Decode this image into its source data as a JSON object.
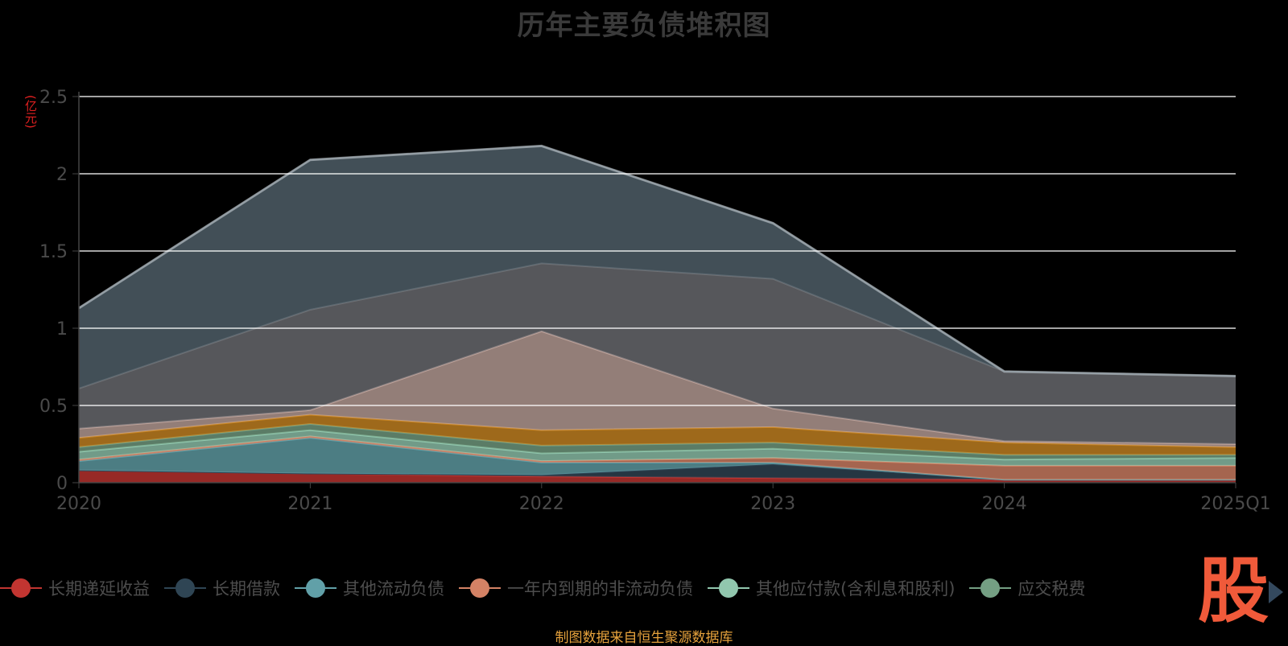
{
  "chart_data": {
    "type": "area",
    "stacked": true,
    "title": "历年主要负债堆积图",
    "ylabel": "(亿元)",
    "ylim": [
      0,
      2.5
    ],
    "yticks": [
      "0",
      "0.5",
      "1",
      "1.5",
      "2",
      "2.5"
    ],
    "categories": [
      "2020",
      "2021",
      "2022",
      "2023",
      "2024",
      "2025Q1"
    ],
    "grid": true,
    "legend_position": "bottom",
    "series": [
      {
        "name": "长期递延收益",
        "color": "#c23531",
        "values": [
          0.08,
          0.06,
          0.04,
          0.03,
          0.02,
          0.02
        ]
      },
      {
        "name": "长期借款",
        "color": "#2f4554",
        "values": [
          0.0,
          0.0,
          0.01,
          0.09,
          0.0,
          0.0
        ]
      },
      {
        "name": "其他流动负债",
        "color": "#61a0a8",
        "values": [
          0.06,
          0.23,
          0.08,
          0.01,
          0.0,
          0.0
        ]
      },
      {
        "name": "一年内到期的非流动负债",
        "color": "#d48265",
        "values": [
          0.01,
          0.01,
          0.01,
          0.03,
          0.09,
          0.09
        ]
      },
      {
        "name": "其他应付款(含利息和股利)",
        "color": "#91c7ae",
        "values": [
          0.05,
          0.04,
          0.05,
          0.06,
          0.04,
          0.05
        ]
      },
      {
        "name": "应交税费",
        "color": "#749f83",
        "values": [
          0.03,
          0.04,
          0.05,
          0.04,
          0.03,
          0.02
        ]
      },
      {
        "name": "",
        "color": "#ca8622",
        "values": [
          0.06,
          0.06,
          0.1,
          0.1,
          0.08,
          0.05
        ]
      },
      {
        "name": "",
        "color": "#bda29a",
        "values": [
          0.06,
          0.03,
          0.64,
          0.12,
          0.01,
          0.02
        ]
      },
      {
        "name": "",
        "color": "#6e7074",
        "values": [
          0.26,
          0.65,
          0.44,
          0.84,
          0.45,
          0.44
        ]
      },
      {
        "name": "",
        "color": "#546570",
        "values": [
          0.52,
          0.97,
          0.76,
          0.36,
          0.0,
          0.0
        ]
      }
    ]
  },
  "source_text": "制图数据来自恒生聚源数据库",
  "logo_text": "股"
}
